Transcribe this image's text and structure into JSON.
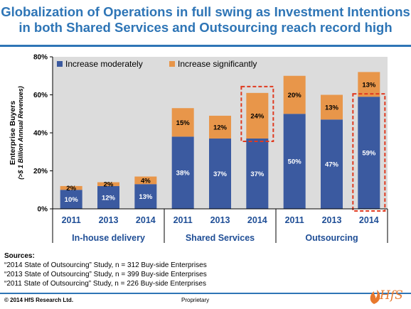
{
  "title_line1": "Globalization of Operations in full swing as Investment Intentions",
  "title_line2": "in both Shared Services and Outsourcing reach record high",
  "chart_data": {
    "type": "bar",
    "stacked": true,
    "ylabel_line1": "Enterprise Buyers",
    "ylabel_line2": "(>$ 1 Billion Annual Revenues)",
    "ylim": [
      0,
      80
    ],
    "yticks": [
      0,
      20,
      40,
      60,
      80
    ],
    "ytick_labels": [
      "0%",
      "20%",
      "40%",
      "60%",
      "80%"
    ],
    "categories": [
      "2011",
      "2013",
      "2014",
      "2011",
      "2013",
      "2014",
      "2011",
      "2013",
      "2014"
    ],
    "groups": [
      "In-house delivery",
      "Shared Services",
      "Outsourcing"
    ],
    "series": [
      {
        "name": "Increase moderately",
        "color": "#3b5aa0",
        "values": [
          10,
          12,
          13,
          38,
          37,
          37,
          50,
          47,
          59
        ],
        "labels": [
          "10%",
          "12%",
          "13%",
          "38%",
          "37%",
          "37%",
          "50%",
          "47%",
          "59%"
        ]
      },
      {
        "name": "Increase significantly",
        "color": "#e8964a",
        "values": [
          2,
          2,
          4,
          15,
          12,
          24,
          20,
          13,
          13
        ],
        "labels": [
          "2%",
          "2%",
          "4%",
          "15%",
          "12%",
          "24%",
          "20%",
          "13%",
          "13%"
        ]
      }
    ],
    "highlighted": [
      5,
      8
    ],
    "legend_position": "top-left",
    "grid": false
  },
  "sources": {
    "heading": "Sources:",
    "lines": [
      "“2014 State of Outsourcing” Study, n = 312 Buy-side Enterprises",
      "“2013 State of Outsourcing” Study, n = 399 Buy-side Enterprises",
      "“2011 State of Outsourcing” Study, n = 226 Buy-side Enterprises"
    ]
  },
  "footer": {
    "copyright": "© 2014 HfS Research Ltd.",
    "proprietary": "Proprietary",
    "logo_text": "HfS"
  },
  "colors": {
    "accent": "#2e75b6",
    "moderate": "#3b5aa0",
    "significant": "#e8964a",
    "highlight": "#e03a20"
  }
}
